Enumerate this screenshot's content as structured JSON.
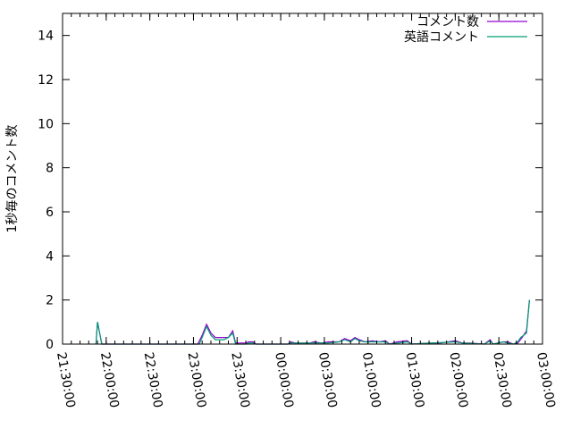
{
  "chart_data": {
    "type": "line",
    "title": "",
    "xlabel": "",
    "ylabel": "1秒毎のコメント数",
    "xlim": [
      "21:30:00",
      "03:00:00"
    ],
    "ylim": [
      0,
      15
    ],
    "x_ticks": [
      "21:30:00",
      "22:00:00",
      "22:30:00",
      "23:00:00",
      "23:30:00",
      "00:00:00",
      "00:30:00",
      "01:00:00",
      "01:30:00",
      "02:00:00",
      "02:30:00",
      "03:00:00"
    ],
    "y_ticks": [
      0,
      2,
      4,
      6,
      8,
      10,
      12,
      14
    ],
    "grid": false,
    "legend_placement": "top-right",
    "series": [
      {
        "name": "コメント数",
        "color": "#9400d3",
        "points": [
          [
            "21:53:00",
            0
          ],
          [
            "21:54:00",
            1.0
          ],
          [
            "21:57:00",
            0
          ],
          [
            "23:03:00",
            0
          ],
          [
            "23:06:00",
            0.4
          ],
          [
            "23:09:00",
            0.9
          ],
          [
            "23:12:00",
            0.5
          ],
          [
            "23:15:00",
            0.3
          ],
          [
            "23:24:00",
            0.3
          ],
          [
            "23:27:00",
            0.6
          ],
          [
            "23:29:00",
            0.05
          ],
          [
            "23:36:00",
            0.05
          ],
          [
            "23:38:00",
            0.1
          ],
          [
            "23:41:00",
            0.1
          ],
          [
            "23:43:00",
            0
          ],
          [
            "00:05:00",
            0
          ],
          [
            "00:07:00",
            0.1
          ],
          [
            "00:10:00",
            0.05
          ],
          [
            "00:20:00",
            0.05
          ],
          [
            "00:23:00",
            0.1
          ],
          [
            "00:28:00",
            0.05
          ],
          [
            "00:33:00",
            0.1
          ],
          [
            "00:40:00",
            0.1
          ],
          [
            "00:44:00",
            0.25
          ],
          [
            "00:48:00",
            0.15
          ],
          [
            "00:51:00",
            0.3
          ],
          [
            "00:54:00",
            0.2
          ],
          [
            "00:58:00",
            0.1
          ],
          [
            "01:03:00",
            0.15
          ],
          [
            "01:08:00",
            0.1
          ],
          [
            "01:12:00",
            0.15
          ],
          [
            "01:15:00",
            0
          ],
          [
            "01:20:00",
            0.1
          ],
          [
            "01:27:00",
            0.15
          ],
          [
            "01:30:00",
            0
          ],
          [
            "01:42:00",
            0.05
          ],
          [
            "01:50:00",
            0.05
          ],
          [
            "02:00:00",
            0.15
          ],
          [
            "02:05:00",
            0.05
          ],
          [
            "02:10:00",
            0.05
          ],
          [
            "02:20:00",
            0
          ],
          [
            "02:24:00",
            0.2
          ],
          [
            "02:26:00",
            0
          ],
          [
            "02:33:00",
            0.1
          ],
          [
            "02:36:00",
            0.1
          ],
          [
            "02:40:00",
            0
          ],
          [
            "02:43:00",
            0.05
          ],
          [
            "02:46:00",
            0.3
          ],
          [
            "02:49:00",
            0.6
          ],
          [
            "02:51:00",
            2.0
          ]
        ]
      },
      {
        "name": "英語コメント",
        "color": "#009e73",
        "points": [
          [
            "21:53:00",
            0
          ],
          [
            "21:54:00",
            1.0
          ],
          [
            "21:57:00",
            0
          ],
          [
            "23:04:00",
            0
          ],
          [
            "23:06:00",
            0.3
          ],
          [
            "23:09:00",
            0.8
          ],
          [
            "23:12:00",
            0.4
          ],
          [
            "23:15:00",
            0.2
          ],
          [
            "23:21:00",
            0.2
          ],
          [
            "23:24:00",
            0.3
          ],
          [
            "23:27:00",
            0.5
          ],
          [
            "23:29:00",
            0
          ],
          [
            "23:36:00",
            0
          ],
          [
            "23:38:00",
            0.05
          ],
          [
            "23:41:00",
            0.05
          ],
          [
            "23:43:00",
            0
          ],
          [
            "00:05:00",
            0
          ],
          [
            "00:07:00",
            0.05
          ],
          [
            "00:10:00",
            0.05
          ],
          [
            "00:23:00",
            0.05
          ],
          [
            "00:33:00",
            0.05
          ],
          [
            "00:40:00",
            0.1
          ],
          [
            "00:44:00",
            0.2
          ],
          [
            "00:48:00",
            0.1
          ],
          [
            "00:51:00",
            0.25
          ],
          [
            "00:54:00",
            0.15
          ],
          [
            "00:58:00",
            0.1
          ],
          [
            "01:03:00",
            0.1
          ],
          [
            "01:08:00",
            0.1
          ],
          [
            "01:12:00",
            0.1
          ],
          [
            "01:15:00",
            0
          ],
          [
            "01:27:00",
            0.1
          ],
          [
            "01:30:00",
            0
          ],
          [
            "02:00:00",
            0.1
          ],
          [
            "02:05:00",
            0.05
          ],
          [
            "02:20:00",
            0
          ],
          [
            "02:24:00",
            0.15
          ],
          [
            "02:26:00",
            0
          ],
          [
            "02:33:00",
            0.1
          ],
          [
            "02:36:00",
            0.05
          ],
          [
            "02:40:00",
            0
          ],
          [
            "02:43:00",
            0.1
          ],
          [
            "02:45:00",
            0.3
          ],
          [
            "02:49:00",
            0.5
          ],
          [
            "02:51:00",
            2.0
          ]
        ]
      }
    ]
  }
}
